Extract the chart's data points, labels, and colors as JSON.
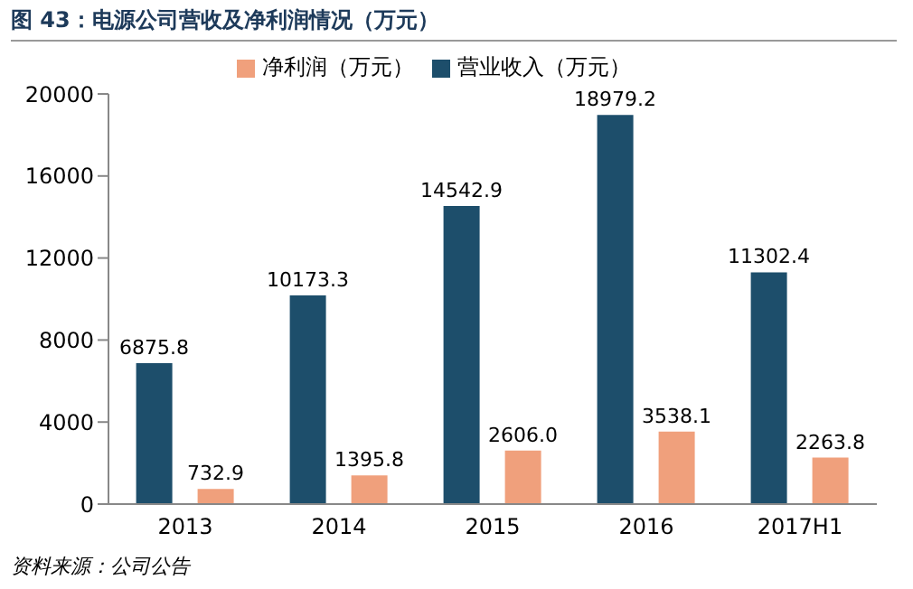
{
  "chart_data": {
    "type": "bar",
    "title": "图 43：电源公司营收及净利润情况（万元）",
    "categories": [
      "2013",
      "2014",
      "2015",
      "2016",
      "2017H1"
    ],
    "series": [
      {
        "name": "营业收入（万元）",
        "color": "#1d4e6b",
        "values": [
          6875.8,
          10173.3,
          14542.9,
          18979.2,
          11302.4
        ]
      },
      {
        "name": "净利润（万元）",
        "color": "#f0a07c",
        "values": [
          732.9,
          1395.8,
          2606.0,
          3538.1,
          2263.8
        ]
      }
    ],
    "value_labels": [
      [
        "6875.8",
        "10173.3",
        "14542.9",
        "18979.2",
        "11302.4"
      ],
      [
        "732.9",
        "1395.8",
        "2606.0",
        "3538.1",
        "2263.8"
      ]
    ],
    "ylim": [
      0,
      20000
    ],
    "yticks": [
      0,
      4000,
      8000,
      12000,
      16000,
      20000
    ],
    "grid": false,
    "legend": "top",
    "annotations": [
      "资料来源：公司公告"
    ]
  }
}
